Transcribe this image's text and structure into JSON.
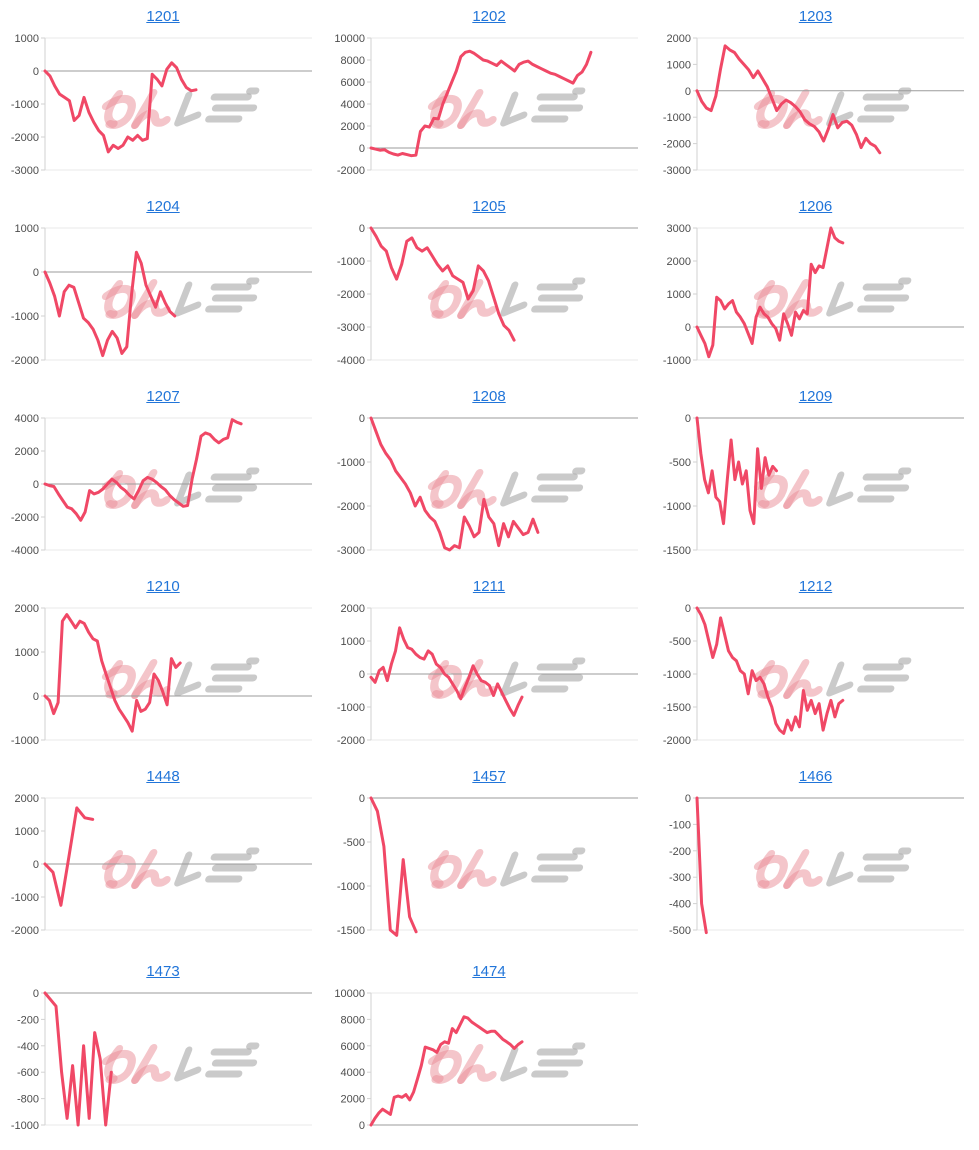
{
  "page": {
    "background": "#ffffff"
  },
  "watermark": {
    "text": "みんレポ"
  },
  "colors": {
    "line": "#f04866",
    "link": "#2175d9",
    "axis_label": "#4d4d4d",
    "zero_line": "#9b9b9b",
    "edge_line": "#e8e8e8",
    "axis_line": "#d2d2d2",
    "watermark_pink": "#e98c96",
    "watermark_gray": "#9f9f9f"
  },
  "chart_data": [
    {
      "type": "line",
      "title": "1201",
      "ymax": 1000,
      "ymin": -3000,
      "ticks": [
        1000,
        0,
        -1000,
        -2000,
        -3000
      ],
      "end_frac": 0.57,
      "values": [
        0,
        -150,
        -450,
        -700,
        -800,
        -900,
        -1500,
        -1350,
        -800,
        -1250,
        -1550,
        -1800,
        -1950,
        -2450,
        -2250,
        -2350,
        -2250,
        -2000,
        -2100,
        -1950,
        -2100,
        -2050,
        -100,
        -250,
        -450,
        50,
        250,
        100,
        -250,
        -500,
        -600,
        -570
      ]
    },
    {
      "type": "line",
      "title": "1202",
      "ymax": 10000,
      "ymin": -2000,
      "ticks": [
        10000,
        8000,
        6000,
        4000,
        2000,
        0,
        -2000
      ],
      "end_frac": 0.83,
      "values": [
        0,
        -100,
        -200,
        -150,
        -400,
        -550,
        -650,
        -500,
        -600,
        -700,
        -650,
        1500,
        2000,
        1900,
        2700,
        2650,
        4000,
        5000,
        6000,
        7000,
        8300,
        8700,
        8800,
        8600,
        8300,
        8000,
        7900,
        7700,
        7500,
        7900,
        7600,
        7300,
        7000,
        7600,
        7800,
        7900,
        7600,
        7400,
        7200,
        7000,
        6800,
        6700,
        6500,
        6300,
        6100,
        5900,
        6600,
        6900,
        7600,
        8700
      ]
    },
    {
      "type": "line",
      "title": "1203",
      "ymax": 2000,
      "ymin": -3000,
      "ticks": [
        2000,
        1000,
        0,
        -1000,
        -2000,
        -3000
      ],
      "end_frac": 0.69,
      "values": [
        0,
        -400,
        -650,
        -750,
        -200,
        800,
        1700,
        1550,
        1450,
        1200,
        1000,
        800,
        500,
        750,
        450,
        150,
        -300,
        -750,
        -500,
        -350,
        -450,
        -600,
        -800,
        -1100,
        -1250,
        -1350,
        -1550,
        -1900,
        -1450,
        -900,
        -1400,
        -1200,
        -1150,
        -1300,
        -1650,
        -2150,
        -1800,
        -2000,
        -2100,
        -2350
      ]
    },
    {
      "type": "line",
      "title": "1204",
      "ymax": 1000,
      "ymin": -2000,
      "ticks": [
        1000,
        0,
        -1000,
        -2000
      ],
      "end_frac": 0.49,
      "values": [
        0,
        -250,
        -550,
        -1000,
        -450,
        -300,
        -350,
        -700,
        -1050,
        -1150,
        -1300,
        -1550,
        -1900,
        -1550,
        -1350,
        -1500,
        -1850,
        -1700,
        -500,
        450,
        200,
        -300,
        -550,
        -800,
        -450,
        -700,
        -900,
        -1000
      ]
    },
    {
      "type": "line",
      "title": "1205",
      "ymax": 0,
      "ymin": -4000,
      "ticks": [
        0,
        -1000,
        -2000,
        -3000,
        -4000
      ],
      "end_frac": 0.54,
      "values": [
        0,
        -250,
        -550,
        -700,
        -1200,
        -1550,
        -1100,
        -400,
        -300,
        -600,
        -700,
        -600,
        -850,
        -1100,
        -1300,
        -1150,
        -1450,
        -1550,
        -1650,
        -2150,
        -1900,
        -1150,
        -1300,
        -1600,
        -2100,
        -2600,
        -2950,
        -3100,
        -3400
      ]
    },
    {
      "type": "line",
      "title": "1206",
      "ymax": 3000,
      "ymin": -1000,
      "ticks": [
        3000,
        2000,
        1000,
        0,
        -1000
      ],
      "end_frac": 0.55,
      "values": [
        0,
        -250,
        -500,
        -900,
        -550,
        900,
        800,
        550,
        700,
        800,
        450,
        300,
        100,
        -200,
        -500,
        300,
        600,
        400,
        300,
        100,
        -50,
        -400,
        400,
        100,
        -250,
        450,
        250,
        500,
        400,
        1900,
        1650,
        1850,
        1800,
        2400,
        3000,
        2700,
        2600,
        2550
      ]
    },
    {
      "type": "line",
      "title": "1207",
      "ymax": 4000,
      "ymin": -4000,
      "ticks": [
        4000,
        2000,
        0,
        -2000,
        -4000
      ],
      "end_frac": 0.74,
      "values": [
        0,
        -100,
        -150,
        -600,
        -1000,
        -1400,
        -1500,
        -1800,
        -2200,
        -1700,
        -400,
        -600,
        -500,
        -300,
        0,
        300,
        100,
        -200,
        -400,
        -700,
        -900,
        -400,
        200,
        400,
        300,
        100,
        -150,
        -350,
        -700,
        -950,
        -1150,
        -1350,
        -1300,
        300,
        1500,
        2900,
        3100,
        3000,
        2700,
        2500,
        2700,
        2800,
        3900,
        3750,
        3650
      ]
    },
    {
      "type": "line",
      "title": "1208",
      "ymax": 0,
      "ymin": -3000,
      "ticks": [
        0,
        -1000,
        -2000,
        -3000
      ],
      "end_frac": 0.63,
      "values": [
        0,
        -300,
        -600,
        -800,
        -950,
        -1200,
        -1350,
        -1500,
        -1700,
        -2000,
        -1800,
        -2100,
        -2250,
        -2350,
        -2600,
        -2950,
        -3000,
        -2900,
        -2950,
        -2250,
        -2450,
        -2700,
        -2600,
        -1850,
        -2250,
        -2400,
        -2900,
        -2400,
        -2700,
        -2350,
        -2500,
        -2650,
        -2600,
        -2300,
        -2600
      ]
    },
    {
      "type": "line",
      "title": "1209",
      "ymax": 0,
      "ymin": -1500,
      "ticks": [
        0,
        -500,
        -1000,
        -1500
      ],
      "end_frac": 0.3,
      "values": [
        0,
        -400,
        -700,
        -850,
        -600,
        -900,
        -950,
        -1200,
        -700,
        -250,
        -700,
        -500,
        -750,
        -600,
        -1050,
        -1200,
        -350,
        -800,
        -450,
        -650,
        -550,
        -600
      ]
    },
    {
      "type": "line",
      "title": "1210",
      "ymax": 2000,
      "ymin": -1000,
      "ticks": [
        2000,
        1000,
        0,
        -1000
      ],
      "end_frac": 0.51,
      "values": [
        0,
        -100,
        -400,
        -150,
        1700,
        1850,
        1700,
        1550,
        1700,
        1650,
        1450,
        1300,
        1250,
        800,
        500,
        200,
        -100,
        -300,
        -450,
        -600,
        -800,
        -100,
        -350,
        -300,
        -150,
        500,
        350,
        100,
        -200,
        850,
        650,
        750
      ]
    },
    {
      "type": "line",
      "title": "1211",
      "ymax": 2000,
      "ymin": -2000,
      "ticks": [
        2000,
        1000,
        0,
        -1000,
        -2000
      ],
      "end_frac": 0.57,
      "values": [
        -100,
        -250,
        100,
        200,
        -200,
        300,
        700,
        1400,
        1050,
        800,
        750,
        600,
        500,
        450,
        700,
        600,
        300,
        200,
        0,
        -100,
        -300,
        -500,
        -750,
        -400,
        -100,
        250,
        0,
        -200,
        -250,
        -350,
        -650,
        -300,
        -550,
        -800,
        -1050,
        -1250,
        -950,
        -700
      ]
    },
    {
      "type": "line",
      "title": "1212",
      "ymax": 0,
      "ymin": -2000,
      "ticks": [
        0,
        -500,
        -1000,
        -1500,
        -2000
      ],
      "end_frac": 0.55,
      "values": [
        0,
        -100,
        -250,
        -500,
        -750,
        -550,
        -150,
        -400,
        -650,
        -750,
        -800,
        -950,
        -1000,
        -1300,
        -950,
        -1100,
        -1050,
        -1150,
        -1350,
        -1500,
        -1750,
        -1850,
        -1900,
        -1700,
        -1850,
        -1650,
        -1800,
        -1250,
        -1550,
        -1400,
        -1600,
        -1450,
        -1850,
        -1600,
        -1400,
        -1650,
        -1450,
        -1400
      ]
    },
    {
      "type": "line",
      "title": "1448",
      "ymax": 2000,
      "ymin": -2000,
      "ticks": [
        2000,
        1000,
        0,
        -1000,
        -2000
      ],
      "end_frac": 0.18,
      "values": [
        0,
        -250,
        -1250,
        200,
        1700,
        1400,
        1350
      ]
    },
    {
      "type": "line",
      "title": "1457",
      "ymax": 0,
      "ymin": -1500,
      "ticks": [
        0,
        -500,
        -1000,
        -1500
      ],
      "end_frac": 0.17,
      "values": [
        0,
        -150,
        -550,
        -1500,
        -1560,
        -700,
        -1350,
        -1520
      ]
    },
    {
      "type": "line",
      "title": "1466",
      "ymax": 0,
      "ymin": -500,
      "ticks": [
        0,
        -100,
        -200,
        -300,
        -400,
        -500
      ],
      "end_frac": 0.035,
      "values": [
        0,
        -400,
        -510
      ]
    },
    {
      "type": "line",
      "title": "1473",
      "ymax": 0,
      "ymin": -1000,
      "ticks": [
        0,
        -200,
        -400,
        -600,
        -800,
        -1000
      ],
      "end_frac": 0.25,
      "values": [
        0,
        -50,
        -100,
        -600,
        -950,
        -550,
        -1000,
        -400,
        -950,
        -300,
        -500,
        -1000,
        -600
      ]
    },
    {
      "type": "line",
      "title": "1474",
      "ymax": 10000,
      "ymin": 0,
      "ticks": [
        10000,
        8000,
        6000,
        4000,
        2000,
        0
      ],
      "end_frac": 0.57,
      "values": [
        0,
        500,
        900,
        1200,
        1000,
        800,
        2100,
        2200,
        2100,
        2300,
        1900,
        2500,
        3500,
        4500,
        5900,
        5800,
        5700,
        5500,
        6100,
        6300,
        6200,
        7300,
        7000,
        7600,
        8200,
        8100,
        7800,
        7600,
        7400,
        7200,
        7000,
        7100,
        7100,
        6800,
        6500,
        6300,
        6100,
        5800,
        6100,
        6300
      ]
    }
  ]
}
